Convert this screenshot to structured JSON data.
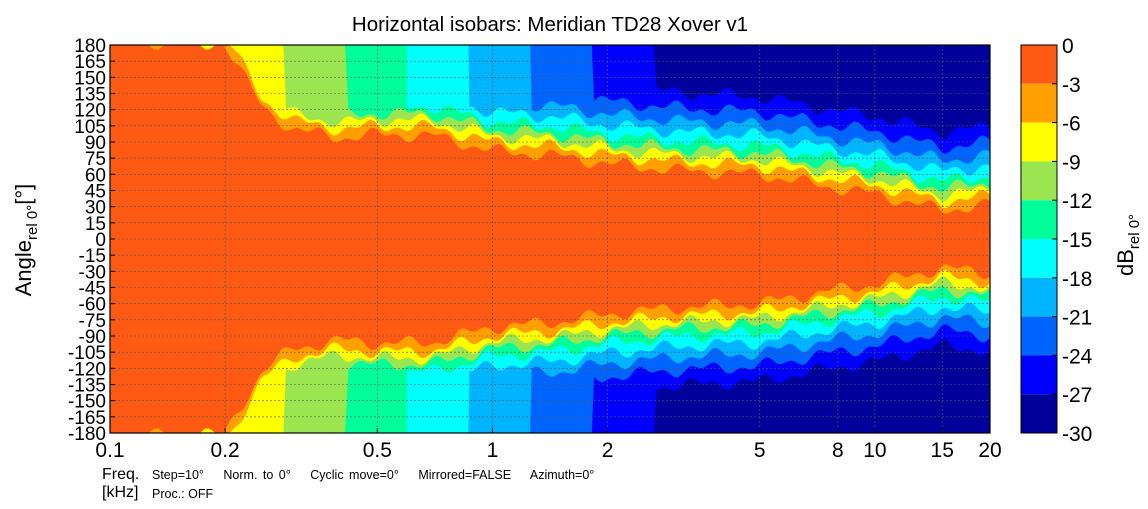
{
  "chart_data": {
    "type": "heatmap",
    "title": "Horizontal isobars: Meridian  TD28  Xover v1",
    "ylabel": "Angle",
    "ylabel_subscript": "rel 0°",
    "ylabel_unit": "[°]",
    "colorbar_label": "dB",
    "colorbar_subscript": "rel 0°",
    "x_axis": {
      "scale": "log",
      "range": [
        0.1,
        20
      ],
      "ticks": [
        0.1,
        0.2,
        0.5,
        1,
        2,
        5,
        8,
        10,
        15,
        20
      ],
      "tick_labels": [
        "0.1",
        "0.2",
        "0.5",
        "1",
        "2",
        "5",
        "8",
        "10",
        "15",
        "20"
      ],
      "grid": true
    },
    "y_axis": {
      "range": [
        -180,
        180
      ],
      "ticks": [
        180,
        165,
        150,
        135,
        120,
        105,
        90,
        75,
        60,
        45,
        30,
        15,
        0,
        -15,
        -30,
        -45,
        -60,
        -75,
        -90,
        -105,
        -120,
        -135,
        -150,
        -165,
        -180
      ],
      "tick_labels": [
        "180",
        "165",
        "150",
        "135",
        "120",
        "105",
        "90",
        "75",
        "60",
        "45",
        "30",
        "15",
        "0",
        "-15",
        "-30",
        "-45",
        "-60",
        "-75",
        "-90",
        "-105",
        "-120",
        "-135",
        "-150",
        "-165",
        "-180"
      ],
      "grid": true
    },
    "colorbar": {
      "levels": [
        0,
        -3,
        -6,
        -9,
        -12,
        -15,
        -18,
        -21,
        -24,
        -27,
        -30
      ],
      "tick_labels": [
        "0",
        "-3",
        "-6",
        "-9",
        "-12",
        "-15",
        "-18",
        "-21",
        "-24",
        "-27",
        "-30"
      ],
      "band_colors": [
        "#ff5a14",
        "#ffa000",
        "#ffff00",
        "#9be650",
        "#00ff9b",
        "#00ffff",
        "#00b4ff",
        "#0064ff",
        "#0000ff",
        "#00009b"
      ],
      "band_ranges": [
        [
          0,
          -3
        ],
        [
          -3,
          -6
        ],
        [
          -6,
          -9
        ],
        [
          -9,
          -12
        ],
        [
          -12,
          -15
        ],
        [
          -15,
          -18
        ],
        [
          -18,
          -21
        ],
        [
          -21,
          -24
        ],
        [
          -24,
          -27
        ],
        [
          -27,
          -30
        ]
      ]
    },
    "series": [
      {
        "level_db": -6,
        "halfwidth_deg_by_freq": {
          "freq_khz": [
            0.1,
            0.15,
            0.2,
            0.25,
            0.3,
            0.4,
            0.5,
            0.7,
            1,
            1.5,
            2,
            3,
            5,
            8,
            10,
            15,
            20
          ],
          "angle_deg": [
            180,
            180,
            180,
            120,
            100,
            92,
            95,
            94,
            80,
            75,
            68,
            62,
            58,
            45,
            40,
            25,
            30
          ]
        }
      }
    ]
  },
  "footer": {
    "freq_label": "Freq.",
    "freq_unit": "[kHz]",
    "params": [
      "Step=10°",
      "Norm. to 0°",
      "Cyclic move=0°",
      "Mirrored=FALSE",
      "Azimuth=0°"
    ],
    "proc": "Proc.: OFF"
  }
}
